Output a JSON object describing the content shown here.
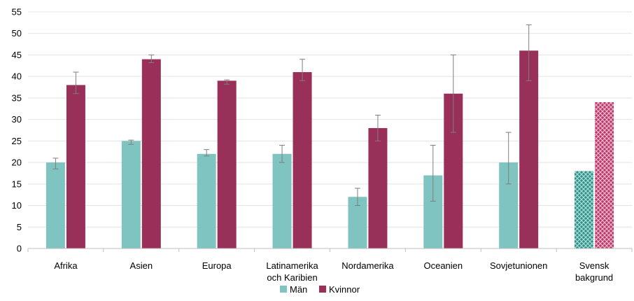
{
  "chart_data": {
    "type": "bar",
    "title": "",
    "xlabel": "",
    "ylabel": "",
    "ylim": [
      0,
      55
    ],
    "yticks": [
      0,
      5,
      10,
      15,
      20,
      25,
      30,
      35,
      40,
      45,
      50,
      55
    ],
    "grid": true,
    "legend_position": "bottom",
    "categories": [
      [
        "Afrika"
      ],
      [
        "Asien"
      ],
      [
        "Europa"
      ],
      [
        "Latinamerika",
        "och Karibien"
      ],
      [
        "Nordamerika"
      ],
      [
        "Oceanien"
      ],
      [
        "Sovjetunionen"
      ],
      [
        "Svensk",
        "bakgrund"
      ]
    ],
    "series": [
      {
        "name": "Män",
        "color": "#7fc4c0",
        "values": [
          20,
          25,
          22,
          22,
          12,
          17,
          20,
          18
        ],
        "error_low": [
          18.5,
          24.2,
          21.5,
          20,
          10,
          11,
          15,
          null
        ],
        "error_high": [
          21,
          25.2,
          23,
          24,
          14,
          24,
          27,
          null
        ]
      },
      {
        "name": "Kvinnor",
        "color": "#983059",
        "values": [
          38,
          44,
          39,
          41,
          28,
          36,
          46,
          34
        ],
        "error_low": [
          36,
          43.2,
          38.2,
          39,
          25,
          27,
          39,
          null
        ],
        "error_high": [
          41,
          45,
          39.2,
          44,
          31,
          45,
          52,
          null
        ]
      }
    ],
    "hatched_category_index": 7
  }
}
